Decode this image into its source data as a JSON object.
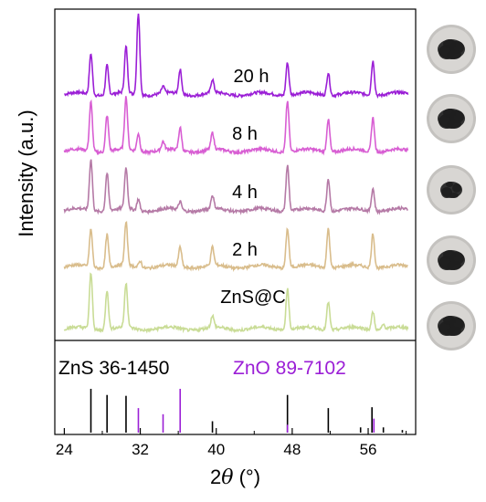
{
  "chart_data": {
    "type": "line",
    "xlabel_prefix": "2",
    "xlabel_theta": "θ",
    "xlabel_unit": " (°)",
    "ylabel": "Intensity (a.u.)",
    "xlim": [
      23,
      61
    ],
    "xticks": [
      "24",
      "32",
      "40",
      "48",
      "56"
    ],
    "series": [
      {
        "name": "20 h",
        "color": "#9b1fd6",
        "peaks": [
          {
            "x": 26.8,
            "h": 0.5
          },
          {
            "x": 28.5,
            "h": 0.36
          },
          {
            "x": 30.5,
            "h": 0.56
          },
          {
            "x": 31.8,
            "h": 1.0
          },
          {
            "x": 34.4,
            "h": 0.08
          },
          {
            "x": 36.2,
            "h": 0.3
          },
          {
            "x": 39.6,
            "h": 0.16
          },
          {
            "x": 47.5,
            "h": 0.4
          },
          {
            "x": 51.8,
            "h": 0.28
          },
          {
            "x": 56.5,
            "h": 0.42
          }
        ]
      },
      {
        "name": "8 h",
        "color": "#d85ed3",
        "peaks": [
          {
            "x": 26.8,
            "h": 0.6
          },
          {
            "x": 28.5,
            "h": 0.44
          },
          {
            "x": 30.5,
            "h": 0.64
          },
          {
            "x": 31.8,
            "h": 0.22
          },
          {
            "x": 34.4,
            "h": 0.1
          },
          {
            "x": 36.2,
            "h": 0.28
          },
          {
            "x": 39.6,
            "h": 0.2
          },
          {
            "x": 47.5,
            "h": 0.62
          },
          {
            "x": 51.8,
            "h": 0.4
          },
          {
            "x": 56.5,
            "h": 0.42
          }
        ]
      },
      {
        "name": "4 h",
        "color": "#b57aa6",
        "peaks": [
          {
            "x": 26.8,
            "h": 0.62
          },
          {
            "x": 28.5,
            "h": 0.46
          },
          {
            "x": 30.5,
            "h": 0.5
          },
          {
            "x": 31.8,
            "h": 0.14
          },
          {
            "x": 36.2,
            "h": 0.1
          },
          {
            "x": 39.6,
            "h": 0.16
          },
          {
            "x": 47.5,
            "h": 0.56
          },
          {
            "x": 51.8,
            "h": 0.4
          },
          {
            "x": 56.5,
            "h": 0.28
          }
        ]
      },
      {
        "name": "2 h",
        "color": "#d9bd8c",
        "peaks": [
          {
            "x": 26.8,
            "h": 0.46
          },
          {
            "x": 28.5,
            "h": 0.4
          },
          {
            "x": 30.5,
            "h": 0.52
          },
          {
            "x": 32.0,
            "h": 0.08
          },
          {
            "x": 36.2,
            "h": 0.24
          },
          {
            "x": 39.6,
            "h": 0.22
          },
          {
            "x": 47.5,
            "h": 0.48
          },
          {
            "x": 51.8,
            "h": 0.48
          },
          {
            "x": 56.5,
            "h": 0.42
          }
        ]
      },
      {
        "name": "ZnS@C",
        "color": "#c9dc96",
        "peaks": [
          {
            "x": 26.8,
            "h": 0.68
          },
          {
            "x": 28.5,
            "h": 0.48
          },
          {
            "x": 30.5,
            "h": 0.54
          },
          {
            "x": 39.6,
            "h": 0.14
          },
          {
            "x": 47.5,
            "h": 0.5
          },
          {
            "x": 51.8,
            "h": 0.34
          },
          {
            "x": 56.5,
            "h": 0.22
          },
          {
            "x": 57.6,
            "h": 0.06
          }
        ]
      }
    ],
    "references": [
      {
        "name": "ZnS 36-1450",
        "color": "#000000",
        "lines": [
          {
            "x": 26.8,
            "h": 1.0
          },
          {
            "x": 28.5,
            "h": 0.86
          },
          {
            "x": 30.5,
            "h": 0.84
          },
          {
            "x": 39.6,
            "h": 0.26
          },
          {
            "x": 47.5,
            "h": 0.86
          },
          {
            "x": 51.8,
            "h": 0.56
          },
          {
            "x": 55.2,
            "h": 0.12
          },
          {
            "x": 56.4,
            "h": 0.58
          },
          {
            "x": 57.6,
            "h": 0.12
          },
          {
            "x": 59.6,
            "h": 0.06
          }
        ]
      },
      {
        "name": "ZnO 89-7102",
        "color": "#9b1fd6",
        "lines": [
          {
            "x": 31.8,
            "h": 0.56
          },
          {
            "x": 34.4,
            "h": 0.42
          },
          {
            "x": 36.2,
            "h": 1.0
          },
          {
            "x": 47.5,
            "h": 0.18
          },
          {
            "x": 56.6,
            "h": 0.32
          }
        ]
      }
    ],
    "grid": false
  }
}
